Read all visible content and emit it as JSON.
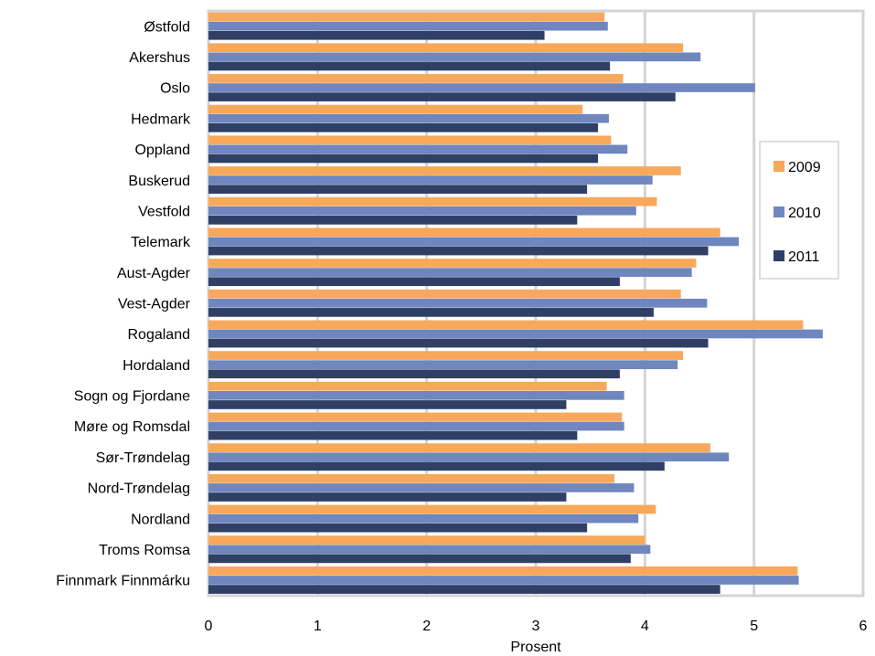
{
  "chart_data": {
    "type": "bar",
    "orientation": "horizontal",
    "categories": [
      "Østfold",
      "Akershus",
      "Oslo",
      "Hedmark",
      "Oppland",
      "Buskerud",
      "Vestfold",
      "Telemark",
      "Aust-Agder",
      "Vest-Agder",
      "Rogaland",
      "Hordaland",
      "Sogn og Fjordane",
      "Møre og Romsdal",
      "Sør-Trøndelag",
      "Nord-Trøndelag",
      "Nordland",
      "Troms Romsa",
      "Finnmark Finnmárku"
    ],
    "series": [
      {
        "name": "2009",
        "color": "#f8a85a",
        "values": [
          3.63,
          4.35,
          3.8,
          3.43,
          3.69,
          4.33,
          4.11,
          4.69,
          4.47,
          4.33,
          5.45,
          4.35,
          3.65,
          3.79,
          4.6,
          3.72,
          4.1,
          4.0,
          5.4
        ]
      },
      {
        "name": "2010",
        "color": "#6f86bf",
        "values": [
          3.66,
          4.51,
          5.01,
          3.67,
          3.84,
          4.07,
          3.92,
          4.86,
          4.43,
          4.57,
          5.63,
          4.3,
          3.81,
          3.81,
          4.77,
          3.9,
          3.94,
          4.05,
          5.41
        ]
      },
      {
        "name": "2011",
        "color": "#2f3f66",
        "values": [
          3.08,
          3.68,
          4.28,
          3.57,
          3.57,
          3.47,
          3.38,
          4.58,
          3.77,
          4.08,
          4.58,
          3.77,
          3.28,
          3.38,
          4.18,
          3.28,
          3.47,
          3.87,
          4.69
        ]
      }
    ],
    "xlabel": "Prosent",
    "xlim": [
      0,
      6
    ],
    "xticks": [
      "0",
      "1",
      "2",
      "3",
      "4",
      "5",
      "6"
    ],
    "grid": true,
    "legend_position": "right"
  }
}
